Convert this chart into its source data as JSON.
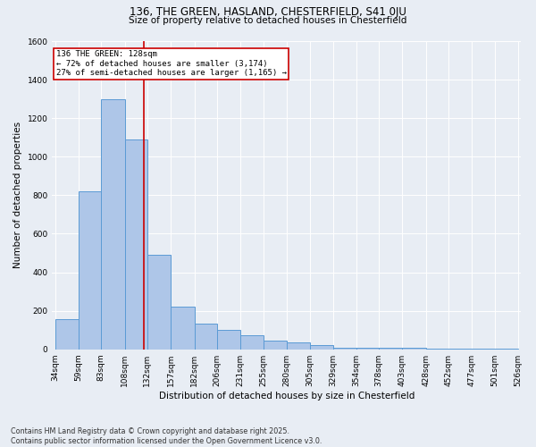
{
  "title1": "136, THE GREEN, HASLAND, CHESTERFIELD, S41 0JU",
  "title2": "Size of property relative to detached houses in Chesterfield",
  "xlabel": "Distribution of detached houses by size in Chesterfield",
  "ylabel": "Number of detached properties",
  "footer1": "Contains HM Land Registry data © Crown copyright and database right 2025.",
  "footer2": "Contains public sector information licensed under the Open Government Licence v3.0.",
  "property_label": "136 THE GREEN: 128sqm",
  "annotation_line1": "← 72% of detached houses are smaller (3,174)",
  "annotation_line2": "27% of semi-detached houses are larger (1,165) →",
  "bar_edges": [
    34,
    59,
    83,
    108,
    132,
    157,
    182,
    206,
    231,
    255,
    280,
    305,
    329,
    354,
    378,
    403,
    428,
    452,
    477,
    501,
    526
  ],
  "bar_heights": [
    155,
    820,
    1300,
    1090,
    490,
    220,
    135,
    100,
    75,
    45,
    35,
    20,
    8,
    8,
    8,
    8,
    5,
    5,
    5,
    5
  ],
  "bar_color": "#aec6e8",
  "bar_edge_color": "#5b9bd5",
  "vline_color": "#cc0000",
  "vline_x": 128,
  "annotation_box_color": "#cc0000",
  "background_color": "#e8edf4",
  "ylim": [
    0,
    1600
  ],
  "yticks": [
    0,
    200,
    400,
    600,
    800,
    1000,
    1200,
    1400,
    1600
  ],
  "title1_fontsize": 8.5,
  "title2_fontsize": 7.5,
  "xlabel_fontsize": 7.5,
  "ylabel_fontsize": 7.5,
  "tick_fontsize": 6.5,
  "annotation_fontsize": 6.5,
  "footer_fontsize": 5.8
}
